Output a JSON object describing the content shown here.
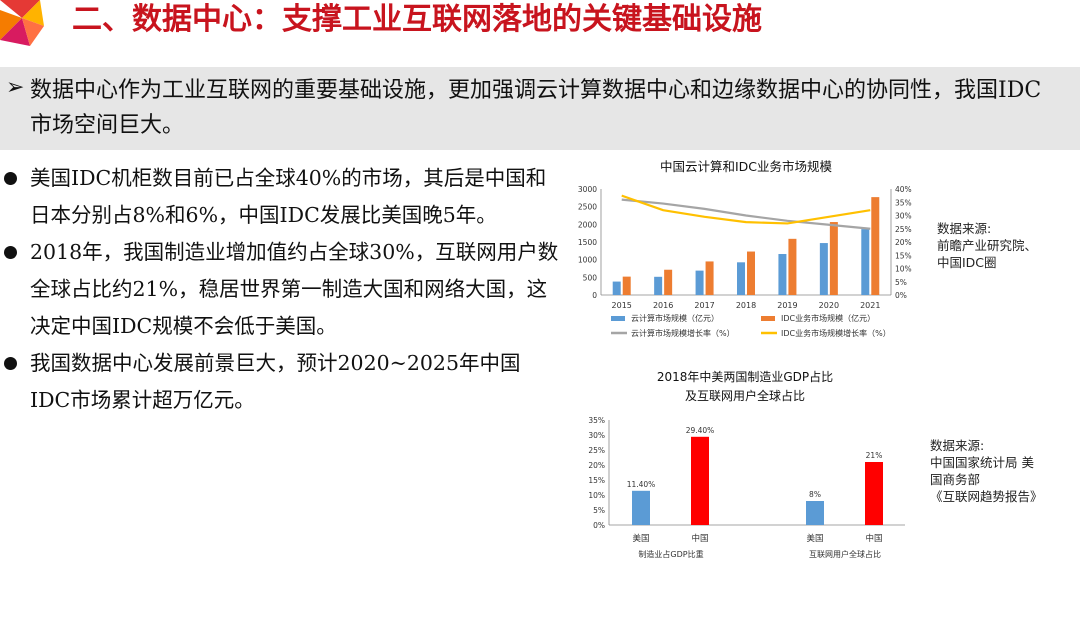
{
  "title": "二、数据中心：支撑工业互联网落地的关键基础设施",
  "summary": {
    "text": "数据中心作为工业互联网的重要基础设施，更加强调云计算数据中心和边缘数据中心的协同性，我国IDC市场空间巨大。"
  },
  "bullets": [
    {
      "text": "美国IDC机柜数目前已占全球40%的市场，其后是中国和日本分别占8%和6%，中国IDC发展比美国晚5年。"
    },
    {
      "text": "2018年，我国制造业增加值约占全球30%，互联网用户数全球占比约21%，稳居世界第一制造大国和网络大国，这决定中国IDC规模不会低于美国。"
    },
    {
      "text": "我国数据中心发展前景巨大，预计2020~2025年中国IDC市场累计超万亿元。"
    }
  ],
  "colors": {
    "title": "#c8141e",
    "blue": "#5b9bd5",
    "orange": "#ed7d31",
    "gray": "#a5a5a5",
    "yellow": "#ffc000",
    "red": "#ff0000"
  },
  "source1": {
    "lines": [
      "数据来源:",
      "前瞻产业研究院、",
      "中国IDC圈"
    ]
  },
  "source2": {
    "lines": [
      "数据来源:",
      "中国国家统计局 美",
      "国商务部",
      "《互联网趋势报告》"
    ]
  },
  "chart_data": [
    {
      "type": "bar",
      "title": "中国云计算和IDC业务市场规模",
      "categories": [
        "2015",
        "2016",
        "2017",
        "2018",
        "2019",
        "2020",
        "2021"
      ],
      "ylim": [
        0,
        3000
      ],
      "yticks": [
        "0",
        "500",
        "1000",
        "1500",
        "2000",
        "2500",
        "3000"
      ],
      "y2lim": [
        0,
        40
      ],
      "y2ticks": [
        "0%",
        "5%",
        "10%",
        "15%",
        "20%",
        "25%",
        "30%",
        "35%",
        "40%"
      ],
      "series": [
        {
          "name": "云计算市场规模（亿元）",
          "kind": "bar",
          "values": [
            380,
            515,
            690,
            925,
            1160,
            1470,
            1865
          ]
        },
        {
          "name": "IDC业务市场规模（亿元）",
          "kind": "bar",
          "values": [
            520,
            715,
            950,
            1230,
            1590,
            2065,
            2770
          ]
        },
        {
          "name": "云计算市场规模增长率（%）",
          "kind": "line",
          "axis": "right",
          "values": [
            36,
            34.5,
            32.5,
            30,
            28,
            26.5,
            25
          ]
        },
        {
          "name": "IDC业务市场规模增长率（%）",
          "kind": "line",
          "axis": "right",
          "values": [
            37.5,
            32,
            29.5,
            27.5,
            27,
            29.5,
            32
          ]
        }
      ],
      "legend_position": "bottom",
      "grid": false
    },
    {
      "type": "bar",
      "title_lines": [
        "2018年中美两国制造业GDP占比",
        "及互联网用户全球占比"
      ],
      "ylim": [
        0,
        35
      ],
      "yticks": [
        "0%",
        "5%",
        "10%",
        "15%",
        "20%",
        "25%",
        "30%",
        "35%"
      ],
      "groups": [
        {
          "label": "制造业占GDP比重",
          "bars": [
            {
              "category": "美国",
              "value": 11.4,
              "label": "11.40%"
            },
            {
              "category": "中国",
              "value": 29.4,
              "label": "29.40%"
            }
          ]
        },
        {
          "label": "互联网用户全球占比",
          "bars": [
            {
              "category": "美国",
              "value": 8,
              "label": "8%"
            },
            {
              "category": "中国",
              "value": 21,
              "label": "21%"
            }
          ]
        }
      ],
      "grid": false
    }
  ]
}
